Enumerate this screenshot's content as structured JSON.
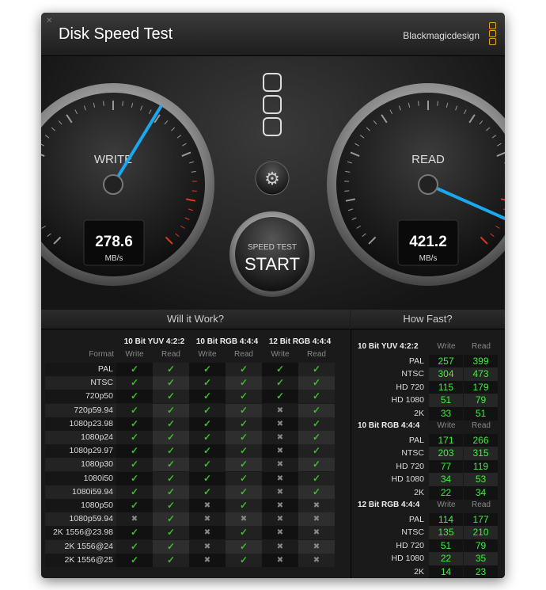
{
  "window": {
    "title": "Disk Speed Test",
    "brand": "Blackmagicdesign",
    "close_icon": "close-icon"
  },
  "gauges": {
    "write": {
      "label": "WRITE",
      "value": "278.6",
      "unit": "MB/s"
    },
    "read": {
      "label": "READ",
      "value": "421.2",
      "unit": "MB/s"
    }
  },
  "controls": {
    "start_top": "SPEED TEST",
    "start_label": "START"
  },
  "will_it_work": {
    "title": "Will it Work?",
    "format_label": "Format",
    "groups": [
      "10 Bit YUV 4:2:2",
      "10 Bit RGB 4:4:4",
      "12 Bit RGB 4:4:4"
    ],
    "write_label": "Write",
    "read_label": "Read",
    "rows": [
      {
        "format": "PAL",
        "r": "yyyyyy"
      },
      {
        "format": "NTSC",
        "r": "yyyyyy"
      },
      {
        "format": "720p50",
        "r": "yyyyyy"
      },
      {
        "format": "720p59.94",
        "r": "yyyyny"
      },
      {
        "format": "1080p23.98",
        "r": "yyyyny"
      },
      {
        "format": "1080p24",
        "r": "yyyyny"
      },
      {
        "format": "1080p29.97",
        "r": "yyyyny"
      },
      {
        "format": "1080p30",
        "r": "yyyyny"
      },
      {
        "format": "1080i50",
        "r": "yyyyny"
      },
      {
        "format": "1080i59.94",
        "r": "yyyyny"
      },
      {
        "format": "1080p50",
        "r": "yynynn"
      },
      {
        "format": "1080p59.94",
        "r": "nynnnn"
      },
      {
        "format": "2K 1556@23.98",
        "r": "yynynn"
      },
      {
        "format": "2K 1556@24",
        "r": "yynynn"
      },
      {
        "format": "2K 1556@25",
        "r": "yynynn"
      }
    ]
  },
  "how_fast": {
    "title": "How Fast?",
    "write_label": "Write",
    "read_label": "Read",
    "sections": [
      {
        "name": "10 Bit YUV 4:2:2",
        "rows": [
          [
            "PAL",
            "257",
            "399"
          ],
          [
            "NTSC",
            "304",
            "473"
          ],
          [
            "HD 720",
            "115",
            "179"
          ],
          [
            "HD 1080",
            "51",
            "79"
          ],
          [
            "2K",
            "33",
            "51"
          ]
        ]
      },
      {
        "name": "10 Bit RGB 4:4:4",
        "rows": [
          [
            "PAL",
            "171",
            "266"
          ],
          [
            "NTSC",
            "203",
            "315"
          ],
          [
            "HD 720",
            "77",
            "119"
          ],
          [
            "HD 1080",
            "34",
            "53"
          ],
          [
            "2K",
            "22",
            "34"
          ]
        ]
      },
      {
        "name": "12 Bit RGB 4:4:4",
        "rows": [
          [
            "PAL",
            "114",
            "177"
          ],
          [
            "NTSC",
            "135",
            "210"
          ],
          [
            "HD 720",
            "51",
            "79"
          ],
          [
            "HD 1080",
            "22",
            "35"
          ],
          [
            "2K",
            "14",
            "23"
          ]
        ]
      }
    ]
  },
  "colors": {
    "needle": "#1aa8f0",
    "check": "#3cbf2a",
    "number": "#3eef3e",
    "redline": "#e03a1a",
    "logo": "#e8a317"
  }
}
